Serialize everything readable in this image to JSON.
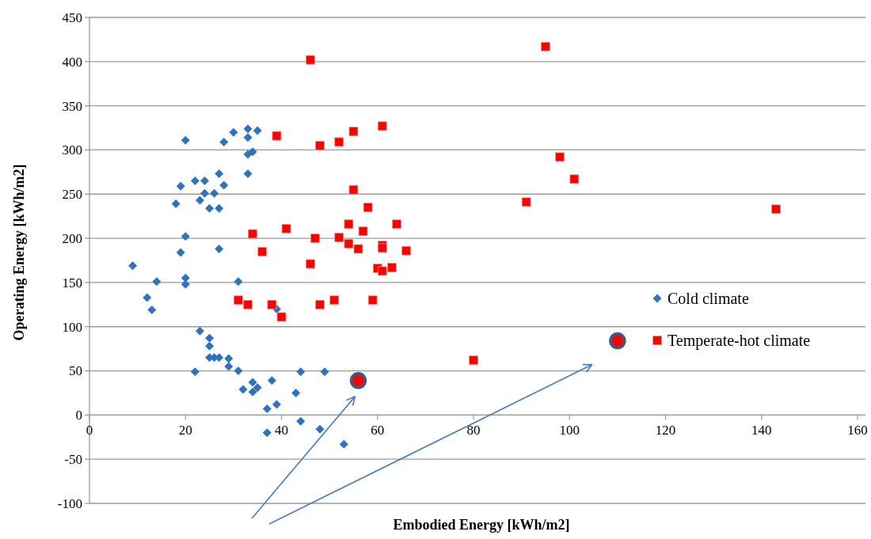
{
  "chart_data": {
    "type": "scatter",
    "xlabel": "Embodied Energy [kWh/m2]",
    "ylabel": "Operating Energy [kWh/m2]",
    "xlim": [
      0,
      160
    ],
    "xticks": [
      0,
      20,
      40,
      60,
      80,
      100,
      120,
      140,
      160
    ],
    "ylim": [
      -100,
      450
    ],
    "yticks": [
      -100,
      -50,
      0,
      50,
      100,
      150,
      200,
      250,
      300,
      350,
      400,
      450
    ],
    "grid": "y",
    "legend": "right",
    "series": [
      {
        "name": "Cold climate",
        "color": "#2f72bf",
        "marker": "diamond",
        "x": [
          20,
          28,
          30,
          33,
          35,
          33,
          34,
          33,
          33,
          27,
          22,
          24,
          28,
          19,
          24,
          26,
          23,
          18,
          25,
          27,
          20,
          27,
          19,
          9,
          14,
          20,
          20,
          31,
          12,
          13,
          39,
          23,
          25,
          25,
          25,
          26,
          27,
          29,
          29,
          22,
          31,
          44,
          49,
          34,
          38,
          32,
          35,
          34,
          43,
          39,
          37,
          44,
          37,
          48,
          53
        ],
        "values": [
          311,
          309,
          320,
          324,
          322,
          314,
          298,
          295,
          273,
          273,
          265,
          265,
          260,
          259,
          251,
          251,
          243,
          239,
          234,
          234,
          202,
          188,
          184,
          169,
          151,
          155,
          148,
          151,
          133,
          119,
          120,
          95,
          87,
          78,
          65,
          65,
          65,
          64,
          55,
          49,
          50,
          49,
          49,
          37,
          39,
          29,
          31,
          26,
          25,
          12,
          7,
          -7,
          -20,
          -16,
          -33
        ]
      },
      {
        "name": "Temperate-hot climate",
        "color": "#ff0000",
        "marker": "square",
        "x": [
          46,
          39,
          48,
          52,
          55,
          61,
          55,
          58,
          34,
          41,
          54,
          64,
          57,
          47,
          52,
          54,
          36,
          56,
          61,
          61,
          66,
          46,
          60,
          61,
          63,
          31,
          33,
          38,
          40,
          48,
          51,
          59,
          95,
          98,
          101,
          91,
          143,
          80
        ],
        "values": [
          402,
          316,
          305,
          309,
          321,
          327,
          255,
          235,
          205,
          211,
          216,
          216,
          208,
          200,
          201,
          194,
          185,
          188,
          192,
          189,
          186,
          171,
          166,
          163,
          167,
          130,
          125,
          125,
          111,
          125,
          130,
          130,
          417,
          292,
          267,
          241,
          233,
          62
        ]
      },
      {
        "color": "#ff0000",
        "marker": "circle",
        "x": [
          56,
          110
        ],
        "values": [
          39,
          84
        ]
      }
    ]
  }
}
